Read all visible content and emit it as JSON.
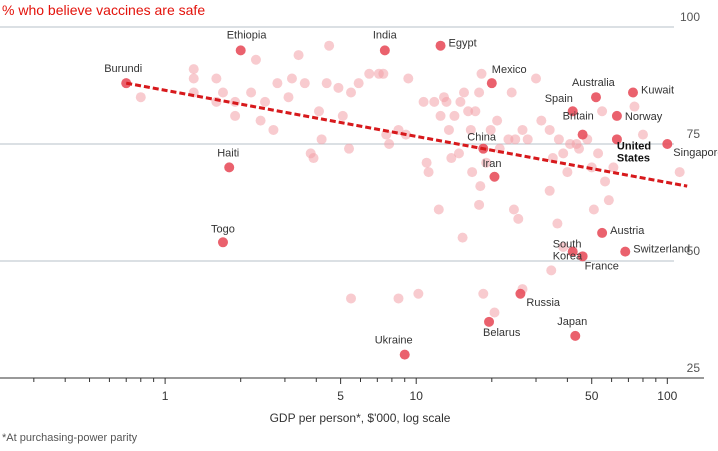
{
  "title": "% who believe vaccines are safe",
  "footnote": "*At purchasing-power parity",
  "chart_data": {
    "type": "scatter",
    "title": "% who believe vaccines are safe",
    "xlabel": "GDP per person*, $'000, log scale",
    "ylabel": "",
    "x_scale": "log",
    "xlim": [
      0.22,
      140
    ],
    "ylim": [
      25,
      100
    ],
    "x_ticks": [
      1,
      5,
      10,
      50,
      100
    ],
    "y_ticks": [
      25,
      50,
      75,
      100
    ],
    "grid": "horizontal",
    "colors": {
      "accent": "#e3120b",
      "point": "#f2a0a8",
      "highlight": "#e8505d",
      "trend": "#d7191c"
    },
    "trend_line": {
      "x": [
        0.7,
        120
      ],
      "y": [
        88,
        66
      ]
    },
    "labeled_points": [
      {
        "label": "Burundi",
        "x": 0.7,
        "y": 88
      },
      {
        "label": "Ethiopia",
        "x": 2.0,
        "y": 95
      },
      {
        "label": "India",
        "x": 7.5,
        "y": 95
      },
      {
        "label": "Egypt",
        "x": 12.5,
        "y": 96
      },
      {
        "label": "Mexico",
        "x": 20,
        "y": 88
      },
      {
        "label": "Australia",
        "x": 52,
        "y": 85
      },
      {
        "label": "Kuwait",
        "x": 73,
        "y": 86
      },
      {
        "label": "Spain",
        "x": 42,
        "y": 82
      },
      {
        "label": "Norway",
        "x": 63,
        "y": 81
      },
      {
        "label": "Britain",
        "x": 46,
        "y": 77
      },
      {
        "label": "China",
        "x": 18.5,
        "y": 74
      },
      {
        "label": "United States",
        "x": 63,
        "y": 76
      },
      {
        "label": "Singapore",
        "x": 100,
        "y": 75
      },
      {
        "label": "Haiti",
        "x": 1.8,
        "y": 70
      },
      {
        "label": "Iran",
        "x": 20.5,
        "y": 68
      },
      {
        "label": "Togo",
        "x": 1.7,
        "y": 54
      },
      {
        "label": "South Korea",
        "x": 42,
        "y": 52
      },
      {
        "label": "Austria",
        "x": 55,
        "y": 56
      },
      {
        "label": "France",
        "x": 46,
        "y": 51
      },
      {
        "label": "Switzerland",
        "x": 68,
        "y": 52
      },
      {
        "label": "Russia",
        "x": 26,
        "y": 43
      },
      {
        "label": "Japan",
        "x": 43,
        "y": 34
      },
      {
        "label": "Belarus",
        "x": 19.5,
        "y": 37
      },
      {
        "label": "Ukraine",
        "x": 9,
        "y": 30
      }
    ],
    "points": [
      {
        "x": 0.8,
        "y": 85
      },
      {
        "x": 1.3,
        "y": 89
      },
      {
        "x": 1.3,
        "y": 86
      },
      {
        "x": 1.3,
        "y": 91
      },
      {
        "x": 1.6,
        "y": 84
      },
      {
        "x": 1.6,
        "y": 89
      },
      {
        "x": 1.7,
        "y": 86
      },
      {
        "x": 1.9,
        "y": 81
      },
      {
        "x": 1.9,
        "y": 84
      },
      {
        "x": 2.2,
        "y": 86
      },
      {
        "x": 2.3,
        "y": 93
      },
      {
        "x": 2.4,
        "y": 80
      },
      {
        "x": 2.5,
        "y": 84
      },
      {
        "x": 2.7,
        "y": 78
      },
      {
        "x": 2.8,
        "y": 88
      },
      {
        "x": 3.1,
        "y": 85
      },
      {
        "x": 3.2,
        "y": 89
      },
      {
        "x": 3.4,
        "y": 94
      },
      {
        "x": 3.6,
        "y": 88
      },
      {
        "x": 3.8,
        "y": 73
      },
      {
        "x": 3.9,
        "y": 72
      },
      {
        "x": 4.1,
        "y": 82
      },
      {
        "x": 4.2,
        "y": 76
      },
      {
        "x": 4.4,
        "y": 88
      },
      {
        "x": 4.5,
        "y": 96
      },
      {
        "x": 4.9,
        "y": 87
      },
      {
        "x": 5.1,
        "y": 81
      },
      {
        "x": 5.4,
        "y": 74
      },
      {
        "x": 5.5,
        "y": 86
      },
      {
        "x": 5.9,
        "y": 88
      },
      {
        "x": 6.5,
        "y": 90
      },
      {
        "x": 7.1,
        "y": 90
      },
      {
        "x": 7.4,
        "y": 90
      },
      {
        "x": 7.6,
        "y": 77
      },
      {
        "x": 7.8,
        "y": 75
      },
      {
        "x": 8.5,
        "y": 78
      },
      {
        "x": 9.1,
        "y": 77
      },
      {
        "x": 9.3,
        "y": 89
      },
      {
        "x": 10.7,
        "y": 84
      },
      {
        "x": 11.0,
        "y": 71
      },
      {
        "x": 11.2,
        "y": 69
      },
      {
        "x": 11.8,
        "y": 84
      },
      {
        "x": 12.5,
        "y": 81
      },
      {
        "x": 12.9,
        "y": 85
      },
      {
        "x": 13.2,
        "y": 84
      },
      {
        "x": 13.5,
        "y": 78
      },
      {
        "x": 13.8,
        "y": 72
      },
      {
        "x": 14.2,
        "y": 81
      },
      {
        "x": 14.8,
        "y": 73
      },
      {
        "x": 15.0,
        "y": 84
      },
      {
        "x": 15.5,
        "y": 86
      },
      {
        "x": 16.1,
        "y": 82
      },
      {
        "x": 16.5,
        "y": 78
      },
      {
        "x": 16.7,
        "y": 69
      },
      {
        "x": 17.2,
        "y": 82
      },
      {
        "x": 17.8,
        "y": 86
      },
      {
        "x": 18.2,
        "y": 90
      },
      {
        "x": 19.0,
        "y": 71
      },
      {
        "x": 19.8,
        "y": 78
      },
      {
        "x": 21.0,
        "y": 80
      },
      {
        "x": 21.5,
        "y": 74
      },
      {
        "x": 23.3,
        "y": 76
      },
      {
        "x": 24.0,
        "y": 86
      },
      {
        "x": 24.8,
        "y": 76
      },
      {
        "x": 26.5,
        "y": 78
      },
      {
        "x": 27.8,
        "y": 76
      },
      {
        "x": 30.0,
        "y": 89
      },
      {
        "x": 31.5,
        "y": 80
      },
      {
        "x": 34.0,
        "y": 78
      },
      {
        "x": 35.0,
        "y": 72
      },
      {
        "x": 37.0,
        "y": 76
      },
      {
        "x": 38.5,
        "y": 73
      },
      {
        "x": 40.0,
        "y": 69
      },
      {
        "x": 41.0,
        "y": 75
      },
      {
        "x": 43.5,
        "y": 75
      },
      {
        "x": 44.5,
        "y": 74
      },
      {
        "x": 48.0,
        "y": 76
      },
      {
        "x": 50.0,
        "y": 70
      },
      {
        "x": 51.0,
        "y": 61
      },
      {
        "x": 53.0,
        "y": 73
      },
      {
        "x": 55.0,
        "y": 82
      },
      {
        "x": 56.5,
        "y": 67
      },
      {
        "x": 58.5,
        "y": 63
      },
      {
        "x": 61.0,
        "y": 70
      },
      {
        "x": 74.0,
        "y": 83
      },
      {
        "x": 80.0,
        "y": 77
      },
      {
        "x": 112.0,
        "y": 69
      },
      {
        "x": 34.0,
        "y": 65
      },
      {
        "x": 36.5,
        "y": 58
      },
      {
        "x": 24.5,
        "y": 61
      },
      {
        "x": 18.0,
        "y": 66
      },
      {
        "x": 17.8,
        "y": 62
      },
      {
        "x": 12.3,
        "y": 61
      },
      {
        "x": 15.3,
        "y": 55
      },
      {
        "x": 25.5,
        "y": 59
      },
      {
        "x": 38.5,
        "y": 53
      },
      {
        "x": 34.5,
        "y": 48
      },
      {
        "x": 8.5,
        "y": 42
      },
      {
        "x": 5.5,
        "y": 42
      },
      {
        "x": 10.2,
        "y": 43
      },
      {
        "x": 18.5,
        "y": 43
      },
      {
        "x": 26.5,
        "y": 44
      },
      {
        "x": 20.5,
        "y": 39
      }
    ]
  }
}
